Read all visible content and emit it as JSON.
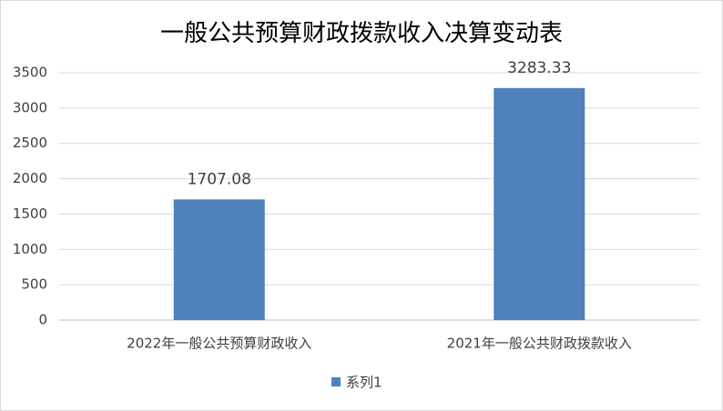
{
  "chart_data": {
    "type": "bar",
    "title": "一般公共预算财政拨款收入决算变动表",
    "categories": [
      "2022年一般公共预算财政收入",
      "2021年一般公共财政拨款收入"
    ],
    "series": [
      {
        "name": "系列1",
        "color": "#4f81bd",
        "values": [
          1707.08,
          3283.33
        ]
      }
    ],
    "ylim": [
      0,
      3500
    ],
    "yticks": [
      0,
      500,
      1000,
      1500,
      2000,
      2500,
      3000,
      3500
    ],
    "grid": true,
    "legend": "bottom"
  }
}
